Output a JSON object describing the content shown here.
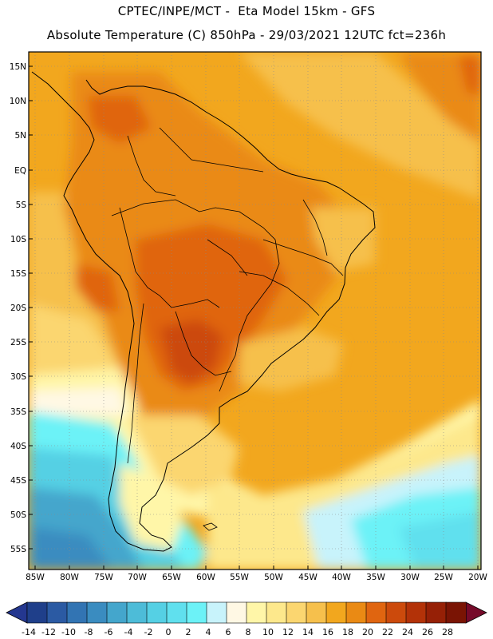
{
  "header": {
    "line1": "CPTEC/INPE/MCT -  Eta Model 15km - GFS",
    "line2": "Absolute Temperature (C) 850hPa - 29/03/2021 12UTC fct=236h"
  },
  "axes": {
    "lat_labels": [
      "15N",
      "10N",
      "5N",
      "EQ",
      "5S",
      "10S",
      "15S",
      "20S",
      "25S",
      "30S",
      "35S",
      "40S",
      "45S",
      "50S",
      "55S"
    ],
    "lon_labels": [
      "85W",
      "80W",
      "75W",
      "70W",
      "65W",
      "60W",
      "55W",
      "50W",
      "45W",
      "40W",
      "35W",
      "30W",
      "25W",
      "20W"
    ]
  },
  "colorbar": {
    "labels": [
      "-14",
      "-12",
      "-10",
      "-8",
      "-6",
      "-4",
      "-2",
      "0",
      "2",
      "4",
      "6",
      "8",
      "10",
      "12",
      "14",
      "16",
      "18",
      "20",
      "22",
      "24",
      "26",
      "28"
    ],
    "colors": [
      "#1f3f8a",
      "#2b5aa3",
      "#3274b3",
      "#3a8cc0",
      "#44a6cc",
      "#4dbcd8",
      "#55d0e4",
      "#60e0ee",
      "#6cf2f7",
      "#c8f3fb",
      "#fff8e4",
      "#fff6a8",
      "#fde88c",
      "#fbd670",
      "#f6c04c",
      "#f2a71e",
      "#ea8a14",
      "#e06510",
      "#cc4a0c",
      "#b33208",
      "#962006",
      "#7a1404"
    ],
    "end_low": "#24378f",
    "end_high": "#760a2a"
  }
}
